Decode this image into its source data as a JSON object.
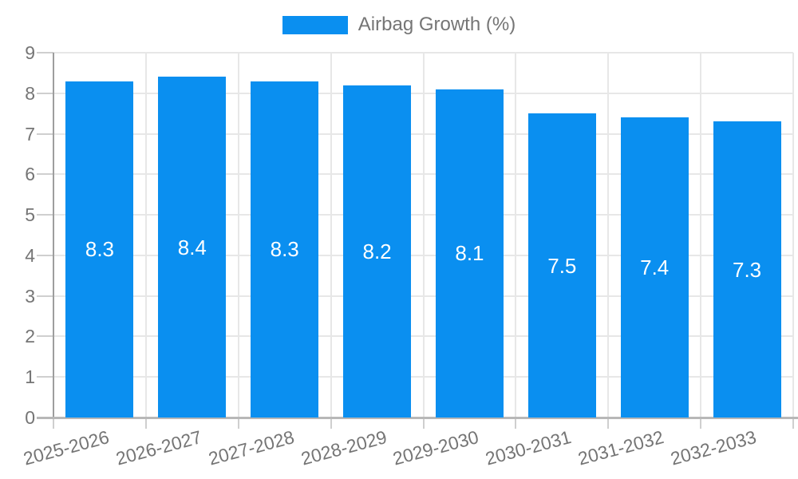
{
  "chart_data": {
    "type": "bar",
    "title": "Airbag Growth (%)",
    "legend": {
      "position": "top",
      "label": "Airbag Growth (%)"
    },
    "categories": [
      "2025-2026",
      "2026-2027",
      "2027-2028",
      "2028-2029",
      "2029-2030",
      "2030-2031",
      "2031-2032",
      "2032-2033"
    ],
    "series": [
      {
        "name": "Airbag Growth (%)",
        "values": [
          8.3,
          8.4,
          8.3,
          8.2,
          8.1,
          7.5,
          7.4,
          7.3
        ]
      }
    ],
    "value_label_decimals": 1,
    "xlabel": "",
    "ylabel": "",
    "ylim": [
      0,
      9
    ],
    "yticks": [
      0,
      1,
      2,
      3,
      4,
      5,
      6,
      7,
      8,
      9
    ],
    "grid": true,
    "x_label_rotation_deg": -15
  },
  "colors": {
    "bar": "#0A8FF0",
    "bar_label": "#FFFFFF",
    "axis_text": "#757575",
    "grid_line": "#E7E7E7",
    "tick_line": "#CFCFCF",
    "baseline": "#B7B7B7",
    "axis_line": "#9E9E9E",
    "background": "#FFFFFF"
  }
}
